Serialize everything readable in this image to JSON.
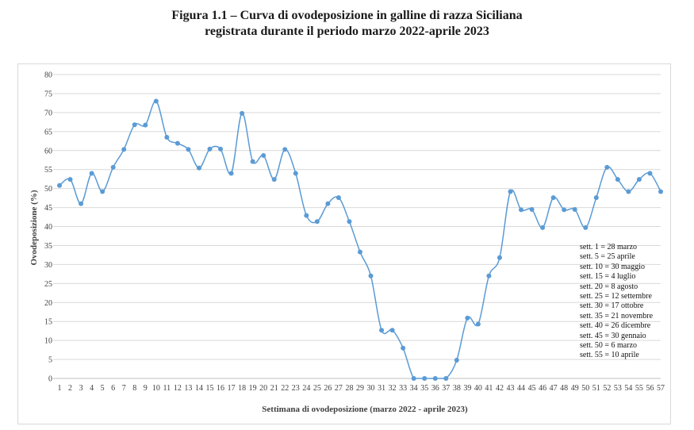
{
  "title": {
    "line1": "Figura 1.1 – Curva di ovodeposizione in galline di razza Siciliana",
    "line2": "registrata durante il periodo marzo 2022-aprile 2023"
  },
  "legend_notes": [
    "sett. 1 = 28 marzo",
    "sett. 5 = 25 aprile",
    "sett. 10 = 30 maggio",
    "sett. 15 = 4 luglio",
    "sett. 20 = 8 agosto",
    "sett. 25 = 12 settembre",
    "sett. 30 = 17 ottobre",
    "sett. 35 = 21 novembre",
    "sett. 40 = 26 dicembre",
    "sett. 45 = 30 gennaio",
    "sett. 50 = 6 marzo",
    "sett. 55 = 10 aprile"
  ],
  "chart_data": {
    "type": "line",
    "xlabel": "Settimana di ovodeposizione (marzo 2022 - aprile 2023)",
    "ylabel": "Ovodeposizione (%)",
    "ylim": [
      0,
      80
    ],
    "yticks": [
      0,
      5,
      10,
      15,
      20,
      25,
      30,
      35,
      40,
      45,
      50,
      55,
      60,
      65,
      70,
      75,
      80
    ],
    "grid": "horizontal",
    "color": "#5b9bd5",
    "x": [
      1,
      2,
      3,
      4,
      5,
      6,
      7,
      8,
      9,
      10,
      11,
      12,
      13,
      14,
      15,
      16,
      17,
      18,
      19,
      20,
      21,
      22,
      23,
      24,
      25,
      26,
      27,
      28,
      29,
      30,
      31,
      32,
      33,
      34,
      35,
      36,
      37,
      38,
      39,
      40,
      41,
      42,
      43,
      44,
      45,
      46,
      47,
      48,
      49,
      50,
      51,
      52,
      53,
      54,
      55,
      56,
      57
    ],
    "series": [
      {
        "values": [
          50.8,
          52.4,
          46.0,
          54.0,
          49.2,
          55.6,
          60.3,
          66.8,
          66.7,
          73.0,
          63.5,
          61.9,
          60.3,
          55.4,
          60.4,
          60.4,
          54.0,
          69.8,
          57.1,
          58.7,
          52.4,
          60.3,
          54.0,
          42.9,
          41.3,
          46.0,
          47.6,
          41.3,
          33.3,
          27.0,
          12.7,
          12.7,
          8.0,
          0.0,
          0.0,
          0.0,
          0.0,
          4.8,
          15.9,
          14.3,
          27.0,
          31.8,
          49.2,
          44.4,
          44.5,
          39.7,
          47.6,
          44.4,
          44.5,
          39.7,
          47.6,
          55.6,
          52.4,
          49.2,
          52.4,
          54.0,
          49.2
        ]
      }
    ]
  }
}
